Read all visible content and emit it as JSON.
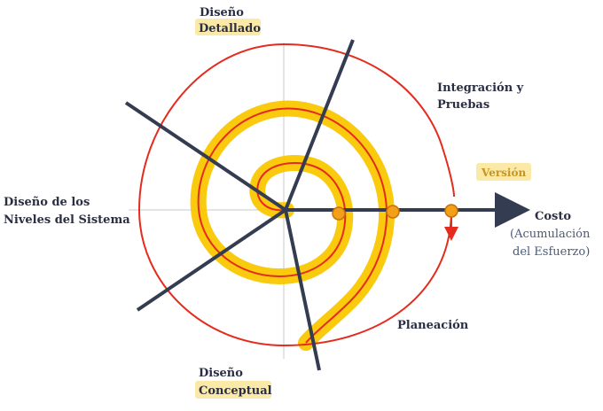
{
  "labels": {
    "diseno_detallado": [
      "Diseño",
      "Detallado"
    ],
    "integracion_pruebas": [
      "Integración y",
      "Pruebas"
    ],
    "version": "Versión",
    "diseno_niveles": [
      "Diseño de los",
      "Niveles del Sistema"
    ],
    "costo": "Costo",
    "acumulacion": [
      "(Acumulación",
      "del Esfuerzo)"
    ],
    "planeacion": "Planeación",
    "diseno_conceptual": [
      "Diseño",
      "Conceptual"
    ]
  },
  "colors": {
    "spiral_red": "#e52b1e",
    "spiral_highlight": "#f9c700",
    "axis_dark": "#343c52",
    "guide_gray": "#c8c8c8",
    "label_dark": "#2a2e43",
    "label_blue": "#4a5a7a",
    "label_gold": "#c89520",
    "tag_fill": "#fbe9a8",
    "milestone_fill": "#f2a01a"
  }
}
